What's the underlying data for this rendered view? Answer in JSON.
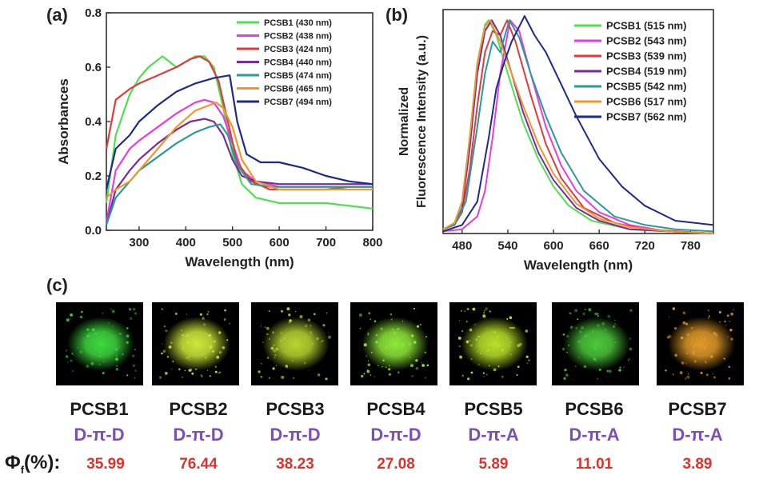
{
  "panel_a": {
    "label": "(a)",
    "chart_data": {
      "type": "line",
      "xlabel": "Wavelength (nm)",
      "ylabel": "Absorbances",
      "xlim": [
        230,
        800
      ],
      "ylim": [
        0,
        0.8
      ],
      "xticks": [
        300,
        400,
        500,
        600,
        700,
        800
      ],
      "yticks": [
        0.0,
        0.2,
        0.4,
        0.6,
        0.8
      ],
      "legend_position": "top-right",
      "series": [
        {
          "name": "PCSB1 (430 nm)",
          "color": "#4fe04f",
          "x": [
            230,
            250,
            280,
            300,
            320,
            350,
            380,
            400,
            420,
            440,
            460,
            480,
            500,
            520,
            550,
            600,
            650,
            700,
            750,
            800
          ],
          "y": [
            0.1,
            0.35,
            0.5,
            0.56,
            0.6,
            0.64,
            0.6,
            0.62,
            0.64,
            0.64,
            0.6,
            0.45,
            0.28,
            0.17,
            0.12,
            0.1,
            0.1,
            0.1,
            0.09,
            0.08
          ]
        },
        {
          "name": "PCSB2 (438 nm)",
          "color": "#e83be8",
          "x": [
            230,
            250,
            280,
            300,
            340,
            380,
            420,
            440,
            460,
            480,
            500,
            520,
            550,
            600,
            650,
            700,
            750,
            800
          ],
          "y": [
            0.03,
            0.22,
            0.3,
            0.33,
            0.38,
            0.43,
            0.47,
            0.48,
            0.47,
            0.42,
            0.32,
            0.22,
            0.18,
            0.16,
            0.16,
            0.16,
            0.16,
            0.16
          ]
        },
        {
          "name": "PCSB3 (424 nm)",
          "color": "#e23a3a",
          "x": [
            230,
            250,
            280,
            300,
            340,
            380,
            410,
            430,
            450,
            470,
            490,
            510,
            540,
            580,
            620,
            660,
            700,
            750,
            800
          ],
          "y": [
            0.3,
            0.48,
            0.52,
            0.54,
            0.57,
            0.6,
            0.63,
            0.64,
            0.62,
            0.55,
            0.4,
            0.25,
            0.18,
            0.15,
            0.15,
            0.15,
            0.15,
            0.16,
            0.16
          ]
        },
        {
          "name": "PCSB4 (440 nm)",
          "color": "#7a2a9a",
          "x": [
            230,
            250,
            280,
            300,
            340,
            380,
            410,
            440,
            460,
            480,
            500,
            520,
            550,
            600,
            650,
            700,
            750,
            800
          ],
          "y": [
            0.02,
            0.15,
            0.22,
            0.26,
            0.32,
            0.37,
            0.4,
            0.41,
            0.4,
            0.35,
            0.26,
            0.2,
            0.18,
            0.17,
            0.17,
            0.17,
            0.17,
            0.17
          ]
        },
        {
          "name": "PCSB5 (474 nm)",
          "color": "#2a9a9a",
          "x": [
            230,
            250,
            280,
            300,
            340,
            380,
            420,
            450,
            474,
            490,
            510,
            540,
            580,
            620,
            660,
            700,
            750,
            800
          ],
          "y": [
            0.02,
            0.12,
            0.18,
            0.22,
            0.27,
            0.32,
            0.36,
            0.38,
            0.39,
            0.35,
            0.24,
            0.17,
            0.16,
            0.16,
            0.16,
            0.16,
            0.16,
            0.16
          ]
        },
        {
          "name": "PCSB6 (465 nm)",
          "color": "#f0962a",
          "x": [
            230,
            250,
            280,
            300,
            340,
            380,
            420,
            450,
            465,
            480,
            500,
            520,
            550,
            600,
            650,
            700,
            750,
            800
          ],
          "y": [
            0.12,
            0.15,
            0.18,
            0.22,
            0.3,
            0.38,
            0.44,
            0.46,
            0.47,
            0.45,
            0.38,
            0.26,
            0.18,
            0.15,
            0.15,
            0.15,
            0.15,
            0.15
          ]
        },
        {
          "name": "PCSB7 (494 nm)",
          "color": "#1e2a8a",
          "x": [
            230,
            250,
            280,
            300,
            340,
            380,
            420,
            460,
            494,
            510,
            530,
            560,
            600,
            650,
            700,
            750,
            800
          ],
          "y": [
            0.15,
            0.3,
            0.35,
            0.4,
            0.46,
            0.51,
            0.54,
            0.56,
            0.57,
            0.4,
            0.28,
            0.25,
            0.25,
            0.23,
            0.2,
            0.18,
            0.17
          ]
        }
      ]
    }
  },
  "panel_b": {
    "label": "(b)",
    "chart_data": {
      "type": "line",
      "xlabel": "Wavelength (nm)",
      "ylabel_line1": "Normalized",
      "ylabel_line2": "Fluorescence Intensity (a.u.)",
      "xlim": [
        455,
        810
      ],
      "ylim": [
        0,
        1.05
      ],
      "xticks": [
        480,
        540,
        600,
        660,
        720,
        780
      ],
      "legend_position": "top-right",
      "series": [
        {
          "name": "PCSB1 (515 nm)",
          "color": "#4fe04f",
          "x": [
            455,
            470,
            480,
            490,
            500,
            510,
            515,
            525,
            540,
            560,
            580,
            600,
            620,
            650,
            700,
            750,
            810
          ],
          "y": [
            0.02,
            0.05,
            0.15,
            0.45,
            0.8,
            0.98,
            1.0,
            0.93,
            0.75,
            0.52,
            0.35,
            0.22,
            0.13,
            0.06,
            0.02,
            0.01,
            0.0
          ]
        },
        {
          "name": "PCSB2 (543 nm)",
          "color": "#e83be8",
          "x": [
            455,
            480,
            500,
            510,
            520,
            530,
            543,
            555,
            570,
            590,
            610,
            630,
            660,
            700,
            750,
            810
          ],
          "y": [
            0.01,
            0.02,
            0.08,
            0.2,
            0.45,
            0.75,
            1.0,
            0.95,
            0.75,
            0.5,
            0.32,
            0.2,
            0.1,
            0.04,
            0.01,
            0.0
          ]
        },
        {
          "name": "PCSB3 (539 nm)",
          "color": "#e23a3a",
          "x": [
            455,
            470,
            480,
            490,
            500,
            510,
            520,
            530,
            539,
            550,
            570,
            590,
            610,
            640,
            680,
            720,
            810
          ],
          "y": [
            0.02,
            0.04,
            0.1,
            0.3,
            0.6,
            0.85,
            0.95,
            0.93,
            1.0,
            0.9,
            0.65,
            0.42,
            0.26,
            0.12,
            0.05,
            0.02,
            0.0
          ]
        },
        {
          "name": "PCSB4 (519 nm)",
          "color": "#7a2a9a",
          "x": [
            455,
            470,
            480,
            490,
            500,
            510,
            519,
            530,
            545,
            560,
            580,
            600,
            630,
            660,
            700,
            750,
            810
          ],
          "y": [
            0.02,
            0.04,
            0.12,
            0.4,
            0.75,
            0.95,
            1.0,
            0.93,
            0.75,
            0.57,
            0.38,
            0.25,
            0.12,
            0.06,
            0.02,
            0.01,
            0.0
          ]
        },
        {
          "name": "PCSB5 (542 nm)",
          "color": "#2a9a9a",
          "x": [
            455,
            470,
            485,
            500,
            510,
            520,
            530,
            542,
            555,
            570,
            590,
            610,
            640,
            680,
            720,
            760,
            810
          ],
          "y": [
            0.02,
            0.04,
            0.15,
            0.5,
            0.75,
            0.9,
            0.85,
            1.0,
            0.92,
            0.75,
            0.55,
            0.38,
            0.2,
            0.08,
            0.04,
            0.02,
            0.01
          ]
        },
        {
          "name": "PCSB6 (517 nm)",
          "color": "#f0962a",
          "x": [
            455,
            470,
            480,
            490,
            500,
            510,
            517,
            530,
            545,
            560,
            580,
            600,
            630,
            660,
            700,
            750,
            810
          ],
          "y": [
            0.02,
            0.05,
            0.15,
            0.45,
            0.8,
            0.97,
            1.0,
            0.9,
            0.75,
            0.6,
            0.42,
            0.28,
            0.14,
            0.07,
            0.03,
            0.01,
            0.0
          ]
        },
        {
          "name": "PCSB7 (562 nm)",
          "color": "#1e2a8a",
          "x": [
            455,
            480,
            500,
            515,
            525,
            535,
            545,
            555,
            562,
            575,
            590,
            610,
            630,
            660,
            690,
            720,
            760,
            810
          ],
          "y": [
            0.01,
            0.04,
            0.15,
            0.45,
            0.68,
            0.8,
            0.9,
            0.97,
            1.02,
            0.93,
            0.85,
            0.7,
            0.55,
            0.35,
            0.22,
            0.13,
            0.06,
            0.04
          ]
        }
      ]
    }
  },
  "panel_c": {
    "label": "(c)",
    "phi_symbol": "Φ",
    "phi_sub": "f",
    "phi_suffix": "(%):",
    "samples": [
      {
        "name": "PCSB1",
        "type": "D-π-D",
        "qy": "35.99",
        "color": "#3fd83f"
      },
      {
        "name": "PCSB2",
        "type": "D-π-D",
        "qy": "76.44",
        "color": "#cfe83a"
      },
      {
        "name": "PCSB3",
        "type": "D-π-D",
        "qy": "38.23",
        "color": "#b6d630"
      },
      {
        "name": "PCSB4",
        "type": "D-π-D",
        "qy": "27.08",
        "color": "#8ee83a"
      },
      {
        "name": "PCSB5",
        "type": "D-π-A",
        "qy": "5.89",
        "color": "#b8e02a"
      },
      {
        "name": "PCSB6",
        "type": "D-π-A",
        "qy": "11.01",
        "color": "#4cc83a"
      },
      {
        "name": "PCSB7",
        "type": "D-π-A",
        "qy": "3.89",
        "color": "#e09a2a"
      }
    ]
  }
}
